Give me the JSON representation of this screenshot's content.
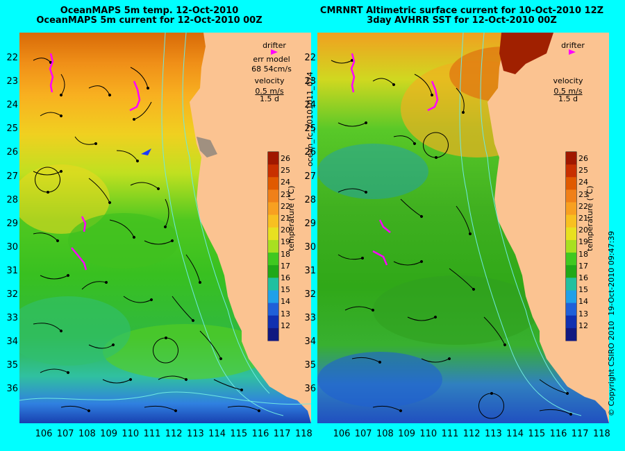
{
  "titles": {
    "left_line1": "OceanMAPS 5m temp. 12-Oct-2010",
    "left_line2": "OceanMAPS 5m current for 12-Oct-2010 00Z",
    "right_line1": "CMRNRT Altimetric surface current for 10-Oct-2010 12Z",
    "right_line2": "3day AVHRR SST for 12-Oct-2010 00Z"
  },
  "latitude_labels": [
    "22",
    "23",
    "24",
    "25",
    "26",
    "27",
    "28",
    "29",
    "30",
    "31",
    "32",
    "33",
    "34",
    "35",
    "36"
  ],
  "longitude_labels": [
    "106",
    "107",
    "108",
    "109",
    "110",
    "111",
    "112",
    "113",
    "114",
    "115",
    "116",
    "117",
    "118"
  ],
  "legend_left": {
    "drifter": "drifter",
    "err_model": "err model",
    "err_value": "68 54cm/s",
    "velocity": "velocity",
    "velocity_value": "0.5 m/s",
    "duration": "1.5 d"
  },
  "legend_right": {
    "drifter": "drifter",
    "velocity": "velocity",
    "velocity_value": "0.5 m/s",
    "duration": "1.5 d"
  },
  "colorbar": {
    "ticks": [
      "26",
      "25",
      "24",
      "23",
      "22",
      "21",
      "20",
      "19",
      "18",
      "17",
      "16",
      "15",
      "14",
      "13",
      "12"
    ],
    "label": "temperature (°C)",
    "colors": [
      "#a01800",
      "#c83000",
      "#e05a00",
      "#f08018",
      "#f8a020",
      "#f8c020",
      "#e8e020",
      "#a8e020",
      "#40c820",
      "#20a818",
      "#20c0a0",
      "#20a0e8",
      "#2060d8",
      "#1030b0",
      "#101880"
    ]
  },
  "side_text": {
    "file_id": "ocean_fc_20101011_024",
    "copyright": "© Copyright CSIRO 2010",
    "timestamp": "19-Oct-2010 09:47:39"
  },
  "colors": {
    "background": "#00ffff",
    "land": "#fbc391",
    "drifter": "#ff00ff"
  }
}
